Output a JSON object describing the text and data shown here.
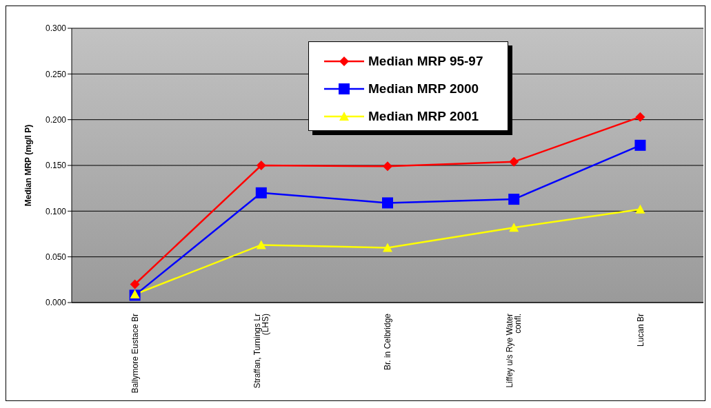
{
  "chart_data": {
    "type": "line",
    "ylabel": "Median MRP (mg/l P)",
    "categories": [
      "Ballymore Eustace Br",
      "Straffan, Turnings Lr (LHS)",
      "Br. in Celbridge",
      "Liffey u/s Rye Water confl.",
      "Lucan Br"
    ],
    "series": [
      {
        "name": "Median MRP 95-97",
        "color": "#ff0000",
        "marker": "diamond",
        "values": [
          0.02,
          0.15,
          0.149,
          0.154,
          0.203
        ]
      },
      {
        "name": "Median MRP 2000",
        "color": "#0000ff",
        "marker": "square",
        "values": [
          0.008,
          0.12,
          0.109,
          0.113,
          0.172
        ]
      },
      {
        "name": "Median MRP 2001",
        "color": "#ffff00",
        "marker": "triangle",
        "values": [
          0.009,
          0.063,
          0.06,
          0.082,
          0.102
        ]
      }
    ],
    "ylim": [
      0,
      0.3
    ],
    "yticks": [
      {
        "value": 0,
        "label": "0.000"
      },
      {
        "value": 0.05,
        "label": "0.050"
      },
      {
        "value": 0.1,
        "label": "0.100"
      },
      {
        "value": 0.15,
        "label": "0.150"
      },
      {
        "value": 0.2,
        "label": "0.200"
      },
      {
        "value": 0.25,
        "label": "0.250"
      },
      {
        "value": 0.3,
        "label": "0.300"
      }
    ],
    "grid": "y",
    "legend": "top right",
    "line_style": "solid"
  }
}
